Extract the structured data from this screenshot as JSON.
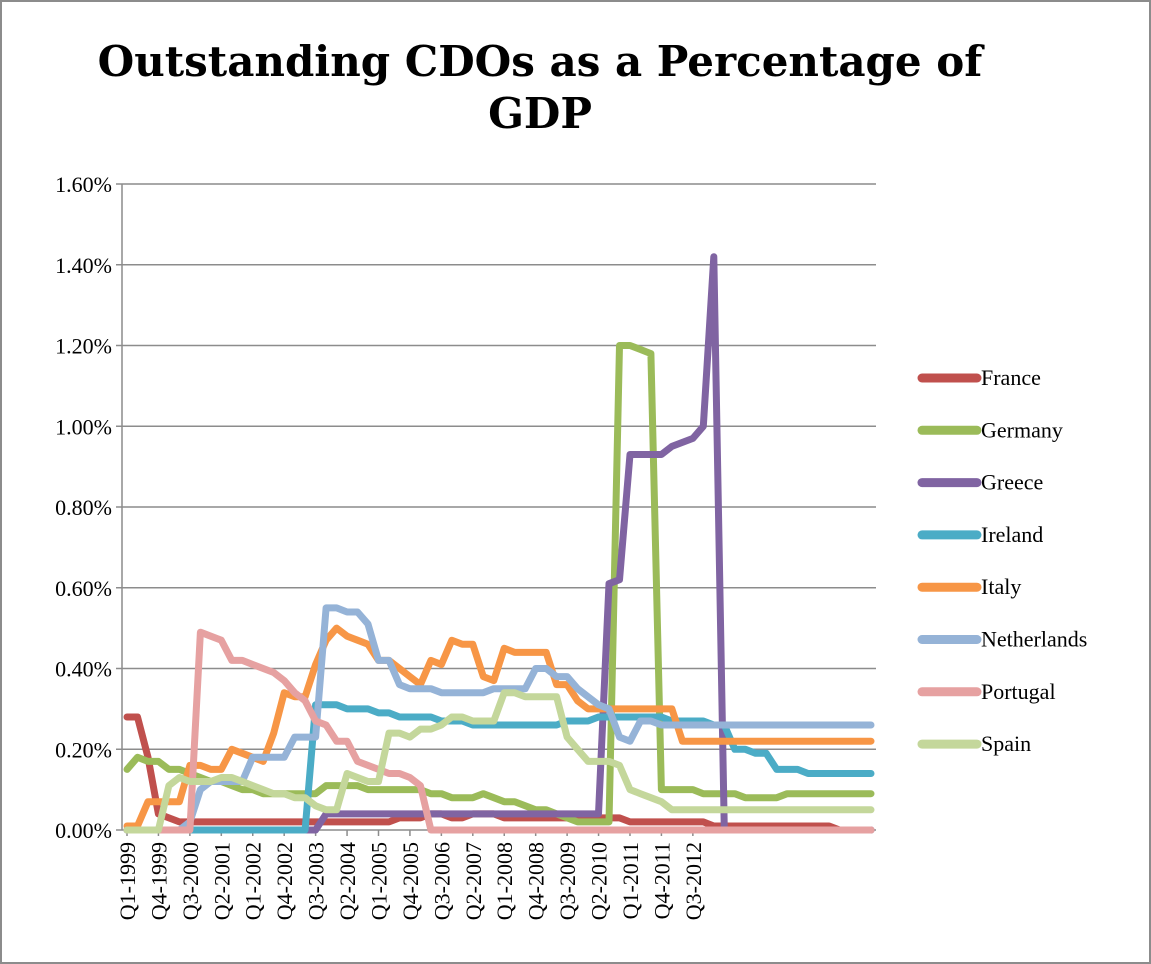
{
  "chart_data": {
    "type": "line",
    "title": "Outstanding CDOs as a Percentage of GDP",
    "xlabel": "",
    "ylabel": "",
    "ylim": [
      0,
      1.6
    ],
    "yticks": [
      "0.00%",
      "0.20%",
      "0.40%",
      "0.60%",
      "0.80%",
      "1.00%",
      "1.20%",
      "1.40%",
      "1.60%"
    ],
    "x_tick_labels": [
      "Q1-1999",
      "Q4-1999",
      "Q3-2000",
      "Q2-2001",
      "Q1-2002",
      "Q4-2002",
      "Q3-2003",
      "Q2-2004",
      "Q1-2005",
      "Q4-2005",
      "Q3-2006",
      "Q2-2007",
      "Q1-2008",
      "Q4-2008",
      "Q3-2009",
      "Q2-2010",
      "Q1-2011",
      "Q4-2011",
      "Q3-2012"
    ],
    "grid": "horizontal",
    "legend_position": "right",
    "series": [
      {
        "name": "France",
        "color": "#c0504d",
        "values": [
          0.28,
          0.28,
          0.18,
          0.04,
          0.03,
          0.02,
          0.02,
          0.02,
          0.02,
          0.02,
          0.02,
          0.02,
          0.02,
          0.02,
          0.02,
          0.02,
          0.02,
          0.02,
          0.02,
          0.02,
          0.02,
          0.02,
          0.02,
          0.02,
          0.02,
          0.02,
          0.03,
          0.03,
          0.03,
          0.04,
          0.04,
          0.03,
          0.03,
          0.04,
          0.04,
          0.04,
          0.03,
          0.03,
          0.03,
          0.03,
          0.03,
          0.03,
          0.03,
          0.03,
          0.03,
          0.03,
          0.03,
          0.03,
          0.02,
          0.02,
          0.02,
          0.02,
          0.02,
          0.02,
          0.02,
          0.02,
          0.01,
          0.01,
          0.01,
          0.01,
          0.01,
          0.01,
          0.01,
          0.01,
          0.01,
          0.01,
          0.01,
          0.01,
          0.0,
          0.0,
          0.0,
          0.0
        ]
      },
      {
        "name": "Germany",
        "color": "#9bbb59",
        "values": [
          0.15,
          0.18,
          0.17,
          0.17,
          0.15,
          0.15,
          0.14,
          0.13,
          0.12,
          0.12,
          0.11,
          0.1,
          0.1,
          0.09,
          0.09,
          0.09,
          0.09,
          0.09,
          0.09,
          0.11,
          0.11,
          0.11,
          0.11,
          0.1,
          0.1,
          0.1,
          0.1,
          0.1,
          0.1,
          0.09,
          0.09,
          0.08,
          0.08,
          0.08,
          0.09,
          0.08,
          0.07,
          0.07,
          0.06,
          0.05,
          0.05,
          0.04,
          0.03,
          0.02,
          0.02,
          0.02,
          0.02,
          1.2,
          1.2,
          1.19,
          1.18,
          0.1,
          0.1,
          0.1,
          0.1,
          0.09,
          0.09,
          0.09,
          0.09,
          0.08,
          0.08,
          0.08,
          0.08,
          0.09,
          0.09,
          0.09,
          0.09,
          0.09,
          0.09,
          0.09,
          0.09,
          0.09
        ]
      },
      {
        "name": "Greece",
        "color": "#8064a2",
        "values": [
          0.0,
          0.0,
          0.0,
          0.0,
          0.0,
          0.0,
          0.0,
          0.0,
          0.0,
          0.0,
          0.0,
          0.0,
          0.0,
          0.0,
          0.0,
          0.0,
          0.0,
          0.0,
          0.0,
          0.04,
          0.04,
          0.04,
          0.04,
          0.04,
          0.04,
          0.04,
          0.04,
          0.04,
          0.04,
          0.04,
          0.04,
          0.04,
          0.04,
          0.04,
          0.04,
          0.04,
          0.04,
          0.04,
          0.04,
          0.04,
          0.04,
          0.04,
          0.04,
          0.04,
          0.04,
          0.04,
          0.61,
          0.62,
          0.93,
          0.93,
          0.93,
          0.93,
          0.95,
          0.96,
          0.97,
          1.0,
          1.42,
          0.0,
          0.0,
          0.0,
          0.0,
          0.0,
          0.0,
          0.0,
          0.0,
          0.0,
          0.0,
          0.0,
          0.0,
          0.0,
          0.0,
          0.0
        ]
      },
      {
        "name": "Ireland",
        "color": "#4bacc6",
        "values": [
          0.0,
          0.0,
          0.0,
          0.0,
          0.0,
          0.0,
          0.0,
          0.0,
          0.0,
          0.0,
          0.0,
          0.0,
          0.0,
          0.0,
          0.0,
          0.0,
          0.0,
          0.0,
          0.31,
          0.31,
          0.31,
          0.3,
          0.3,
          0.3,
          0.29,
          0.29,
          0.28,
          0.28,
          0.28,
          0.28,
          0.27,
          0.27,
          0.27,
          0.26,
          0.26,
          0.26,
          0.26,
          0.26,
          0.26,
          0.26,
          0.26,
          0.26,
          0.27,
          0.27,
          0.27,
          0.28,
          0.28,
          0.28,
          0.28,
          0.28,
          0.28,
          0.28,
          0.27,
          0.27,
          0.27,
          0.27,
          0.26,
          0.26,
          0.2,
          0.2,
          0.19,
          0.19,
          0.15,
          0.15,
          0.15,
          0.14,
          0.14,
          0.14,
          0.14,
          0.14,
          0.14,
          0.14
        ]
      },
      {
        "name": "Italy",
        "color": "#f79646",
        "values": [
          0.01,
          0.01,
          0.07,
          0.07,
          0.07,
          0.07,
          0.16,
          0.16,
          0.15,
          0.15,
          0.2,
          0.19,
          0.18,
          0.17,
          0.24,
          0.34,
          0.33,
          0.33,
          0.41,
          0.47,
          0.5,
          0.48,
          0.47,
          0.46,
          0.42,
          0.42,
          0.4,
          0.38,
          0.36,
          0.42,
          0.41,
          0.47,
          0.46,
          0.46,
          0.38,
          0.37,
          0.45,
          0.44,
          0.44,
          0.44,
          0.44,
          0.36,
          0.36,
          0.32,
          0.3,
          0.3,
          0.3,
          0.3,
          0.3,
          0.3,
          0.3,
          0.3,
          0.3,
          0.22,
          0.22,
          0.22,
          0.22,
          0.22,
          0.22,
          0.22,
          0.22,
          0.22,
          0.22,
          0.22,
          0.22,
          0.22,
          0.22,
          0.22,
          0.22,
          0.22,
          0.22,
          0.22
        ]
      },
      {
        "name": "Netherlands",
        "color": "#95b3d7",
        "values": [
          0.0,
          0.0,
          0.0,
          0.0,
          0.0,
          0.0,
          0.02,
          0.1,
          0.12,
          0.12,
          0.12,
          0.12,
          0.18,
          0.18,
          0.18,
          0.18,
          0.23,
          0.23,
          0.23,
          0.55,
          0.55,
          0.54,
          0.54,
          0.51,
          0.42,
          0.42,
          0.36,
          0.35,
          0.35,
          0.35,
          0.34,
          0.34,
          0.34,
          0.34,
          0.34,
          0.35,
          0.35,
          0.35,
          0.35,
          0.4,
          0.4,
          0.38,
          0.38,
          0.35,
          0.33,
          0.31,
          0.3,
          0.23,
          0.22,
          0.27,
          0.27,
          0.26,
          0.26,
          0.26,
          0.26,
          0.26,
          0.26,
          0.26,
          0.26,
          0.26,
          0.26,
          0.26,
          0.26,
          0.26,
          0.26,
          0.26,
          0.26,
          0.26,
          0.26,
          0.26,
          0.26,
          0.26
        ]
      },
      {
        "name": "Portugal",
        "color": "#e6a1a1",
        "values": [
          0.0,
          0.0,
          0.0,
          0.0,
          0.0,
          0.0,
          0.0,
          0.49,
          0.48,
          0.47,
          0.42,
          0.42,
          0.41,
          0.4,
          0.39,
          0.37,
          0.34,
          0.32,
          0.27,
          0.26,
          0.22,
          0.22,
          0.17,
          0.16,
          0.15,
          0.14,
          0.14,
          0.13,
          0.11,
          0.0,
          0.0,
          0.0,
          0.0,
          0.0,
          0.0,
          0.0,
          0.0,
          0.0,
          0.0,
          0.0,
          0.0,
          0.0,
          0.0,
          0.0,
          0.0,
          0.0,
          0.0,
          0.0,
          0.0,
          0.0,
          0.0,
          0.0,
          0.0,
          0.0,
          0.0,
          0.0,
          0.0,
          0.0,
          0.0,
          0.0,
          0.0,
          0.0,
          0.0,
          0.0,
          0.0,
          0.0,
          0.0,
          0.0,
          0.0,
          0.0,
          0.0,
          0.0
        ]
      },
      {
        "name": "Spain",
        "color": "#c4d79b",
        "values": [
          0.0,
          0.0,
          0.0,
          0.0,
          0.11,
          0.13,
          0.12,
          0.12,
          0.12,
          0.13,
          0.13,
          0.12,
          0.11,
          0.1,
          0.09,
          0.09,
          0.08,
          0.08,
          0.06,
          0.05,
          0.05,
          0.14,
          0.13,
          0.12,
          0.12,
          0.24,
          0.24,
          0.23,
          0.25,
          0.25,
          0.26,
          0.28,
          0.28,
          0.27,
          0.27,
          0.27,
          0.34,
          0.34,
          0.33,
          0.33,
          0.33,
          0.33,
          0.23,
          0.2,
          0.17,
          0.17,
          0.17,
          0.16,
          0.1,
          0.09,
          0.08,
          0.07,
          0.05,
          0.05,
          0.05,
          0.05,
          0.05,
          0.05,
          0.05,
          0.05,
          0.05,
          0.05,
          0.05,
          0.05,
          0.05,
          0.05,
          0.05,
          0.05,
          0.05,
          0.05,
          0.05,
          0.05
        ]
      }
    ]
  }
}
